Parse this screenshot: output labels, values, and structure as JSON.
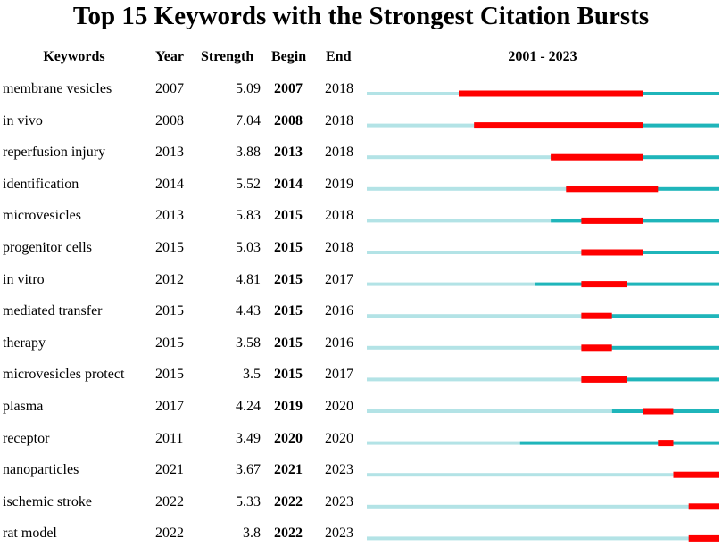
{
  "title": "Top 15 Keywords with the Strongest Citation Bursts",
  "headers": {
    "keywords": "Keywords",
    "year": "Year",
    "strength": "Strength",
    "begin": "Begin",
    "end": "End",
    "range": "2001 - 2023"
  },
  "chart_data": {
    "type": "table",
    "title": "Top 15 Keywords with the Strongest Citation Bursts",
    "timeline_start": 2001,
    "timeline_end": 2023,
    "colors": {
      "pre_appearance": "#b3e3e6",
      "active": "#1fb5ba",
      "burst": "#ff0000"
    },
    "rows": [
      {
        "keyword": "membrane vesicles",
        "year": "2007",
        "strength": "5.09",
        "begin": "2007",
        "end": "2018"
      },
      {
        "keyword": "in vivo",
        "year": "2008",
        "strength": "7.04",
        "begin": "2008",
        "end": "2018"
      },
      {
        "keyword": "reperfusion injury",
        "year": "2013",
        "strength": "3.88",
        "begin": "2013",
        "end": "2018"
      },
      {
        "keyword": "identification",
        "year": "2014",
        "strength": "5.52",
        "begin": "2014",
        "end": "2019"
      },
      {
        "keyword": "microvesicles",
        "year": "2013",
        "strength": "5.83",
        "begin": "2015",
        "end": "2018"
      },
      {
        "keyword": "progenitor cells",
        "year": "2015",
        "strength": "5.03",
        "begin": "2015",
        "end": "2018"
      },
      {
        "keyword": "in vitro",
        "year": "2012",
        "strength": "4.81",
        "begin": "2015",
        "end": "2017"
      },
      {
        "keyword": "mediated transfer",
        "year": "2015",
        "strength": "4.43",
        "begin": "2015",
        "end": "2016"
      },
      {
        "keyword": "therapy",
        "year": "2015",
        "strength": "3.58",
        "begin": "2015",
        "end": "2016"
      },
      {
        "keyword": "microvesicles protect",
        "year": "2015",
        "strength": "3.5",
        "begin": "2015",
        "end": "2017"
      },
      {
        "keyword": "plasma",
        "year": "2017",
        "strength": "4.24",
        "begin": "2019",
        "end": "2020"
      },
      {
        "keyword": "receptor",
        "year": "2011",
        "strength": "3.49",
        "begin": "2020",
        "end": "2020"
      },
      {
        "keyword": "nanoparticles",
        "year": "2021",
        "strength": "3.67",
        "begin": "2021",
        "end": "2023"
      },
      {
        "keyword": "ischemic stroke",
        "year": "2022",
        "strength": "5.33",
        "begin": "2022",
        "end": "2023"
      },
      {
        "keyword": "rat model",
        "year": "2022",
        "strength": "3.8",
        "begin": "2022",
        "end": "2023"
      }
    ]
  }
}
